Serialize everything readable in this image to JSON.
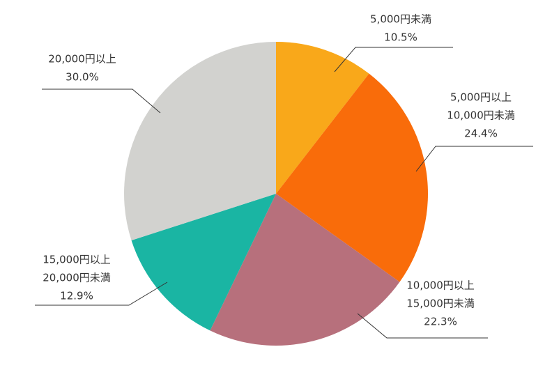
{
  "chart_data": {
    "type": "pie",
    "categories": [
      [
        "5,000円未満"
      ],
      [
        "5,000円以上",
        "10,000円未満"
      ],
      [
        "10,000円以上",
        "15,000円未満"
      ],
      [
        "15,000円以上",
        "20,000円未満"
      ],
      [
        "20,000円以上"
      ]
    ],
    "values": [
      10.5,
      24.4,
      22.3,
      12.9,
      30.0
    ],
    "value_labels": [
      "10.5%",
      "24.4%",
      "22.3%",
      "12.9%",
      "30.0%"
    ],
    "colors": [
      "#f9a81a",
      "#f96c0a",
      "#b7707c",
      "#1ab5a3",
      "#d2d2cf"
    ]
  }
}
